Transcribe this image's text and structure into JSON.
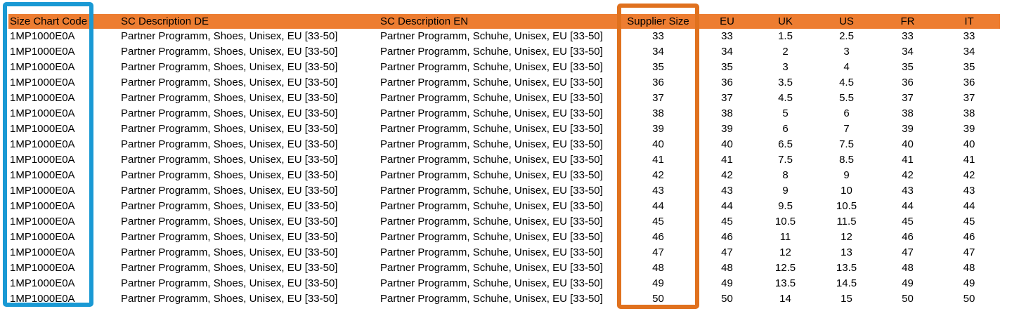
{
  "colors": {
    "background": "#FFFFFF",
    "header_fill": "#ED7D31",
    "header_text": "#000000",
    "cell_text": "#000000",
    "size_chart_code_highlight_box": "#1999D4",
    "supplier_size_highlight_box": "#E0711E"
  },
  "table": {
    "columns": [
      {
        "key": "size_chart_code",
        "label": "Size Chart Code",
        "align": "left"
      },
      {
        "key": "sc_description_de",
        "label": "SC Description DE",
        "align": "left"
      },
      {
        "key": "sc_description_en",
        "label": "SC Description EN",
        "align": "left"
      },
      {
        "key": "supplier_size",
        "label": "Supplier Size",
        "align": "center"
      },
      {
        "key": "eu",
        "label": "EU",
        "align": "center"
      },
      {
        "key": "uk",
        "label": "UK",
        "align": "center"
      },
      {
        "key": "us",
        "label": "US",
        "align": "center"
      },
      {
        "key": "fr",
        "label": "FR",
        "align": "center"
      },
      {
        "key": "it",
        "label": "IT",
        "align": "center"
      }
    ],
    "rows": [
      [
        "1MP1000E0A",
        "Partner Programm, Shoes, Unisex, EU [33-50]",
        "Partner Programm, Schuhe, Unisex, EU [33-50]",
        "33",
        "33",
        "1.5",
        "2.5",
        "33",
        "33"
      ],
      [
        "1MP1000E0A",
        "Partner Programm, Shoes, Unisex, EU [33-50]",
        "Partner Programm, Schuhe, Unisex, EU [33-50]",
        "34",
        "34",
        "2",
        "3",
        "34",
        "34"
      ],
      [
        "1MP1000E0A",
        "Partner Programm, Shoes, Unisex, EU [33-50]",
        "Partner Programm, Schuhe, Unisex, EU [33-50]",
        "35",
        "35",
        "3",
        "4",
        "35",
        "35"
      ],
      [
        "1MP1000E0A",
        "Partner Programm, Shoes, Unisex, EU [33-50]",
        "Partner Programm, Schuhe, Unisex, EU [33-50]",
        "36",
        "36",
        "3.5",
        "4.5",
        "36",
        "36"
      ],
      [
        "1MP1000E0A",
        "Partner Programm, Shoes, Unisex, EU [33-50]",
        "Partner Programm, Schuhe, Unisex, EU [33-50]",
        "37",
        "37",
        "4.5",
        "5.5",
        "37",
        "37"
      ],
      [
        "1MP1000E0A",
        "Partner Programm, Shoes, Unisex, EU [33-50]",
        "Partner Programm, Schuhe, Unisex, EU [33-50]",
        "38",
        "38",
        "5",
        "6",
        "38",
        "38"
      ],
      [
        "1MP1000E0A",
        "Partner Programm, Shoes, Unisex, EU [33-50]",
        "Partner Programm, Schuhe, Unisex, EU [33-50]",
        "39",
        "39",
        "6",
        "7",
        "39",
        "39"
      ],
      [
        "1MP1000E0A",
        "Partner Programm, Shoes, Unisex, EU [33-50]",
        "Partner Programm, Schuhe, Unisex, EU [33-50]",
        "40",
        "40",
        "6.5",
        "7.5",
        "40",
        "40"
      ],
      [
        "1MP1000E0A",
        "Partner Programm, Shoes, Unisex, EU [33-50]",
        "Partner Programm, Schuhe, Unisex, EU [33-50]",
        "41",
        "41",
        "7.5",
        "8.5",
        "41",
        "41"
      ],
      [
        "1MP1000E0A",
        "Partner Programm, Shoes, Unisex, EU [33-50]",
        "Partner Programm, Schuhe, Unisex, EU [33-50]",
        "42",
        "42",
        "8",
        "9",
        "42",
        "42"
      ],
      [
        "1MP1000E0A",
        "Partner Programm, Shoes, Unisex, EU [33-50]",
        "Partner Programm, Schuhe, Unisex, EU [33-50]",
        "43",
        "43",
        "9",
        "10",
        "43",
        "43"
      ],
      [
        "1MP1000E0A",
        "Partner Programm, Shoes, Unisex, EU [33-50]",
        "Partner Programm, Schuhe, Unisex, EU [33-50]",
        "44",
        "44",
        "9.5",
        "10.5",
        "44",
        "44"
      ],
      [
        "1MP1000E0A",
        "Partner Programm, Shoes, Unisex, EU [33-50]",
        "Partner Programm, Schuhe, Unisex, EU [33-50]",
        "45",
        "45",
        "10.5",
        "11.5",
        "45",
        "45"
      ],
      [
        "1MP1000E0A",
        "Partner Programm, Shoes, Unisex, EU [33-50]",
        "Partner Programm, Schuhe, Unisex, EU [33-50]",
        "46",
        "46",
        "11",
        "12",
        "46",
        "46"
      ],
      [
        "1MP1000E0A",
        "Partner Programm, Shoes, Unisex, EU [33-50]",
        "Partner Programm, Schuhe, Unisex, EU [33-50]",
        "47",
        "47",
        "12",
        "13",
        "47",
        "47"
      ],
      [
        "1MP1000E0A",
        "Partner Programm, Shoes, Unisex, EU [33-50]",
        "Partner Programm, Schuhe, Unisex, EU [33-50]",
        "48",
        "48",
        "12.5",
        "13.5",
        "48",
        "48"
      ],
      [
        "1MP1000E0A",
        "Partner Programm, Shoes, Unisex, EU [33-50]",
        "Partner Programm, Schuhe, Unisex, EU [33-50]",
        "49",
        "49",
        "13.5",
        "14.5",
        "49",
        "49"
      ],
      [
        "1MP1000E0A",
        "Partner Programm, Shoes, Unisex, EU [33-50]",
        "Partner Programm, Schuhe, Unisex, EU [33-50]",
        "50",
        "50",
        "14",
        "15",
        "50",
        "50"
      ]
    ]
  }
}
